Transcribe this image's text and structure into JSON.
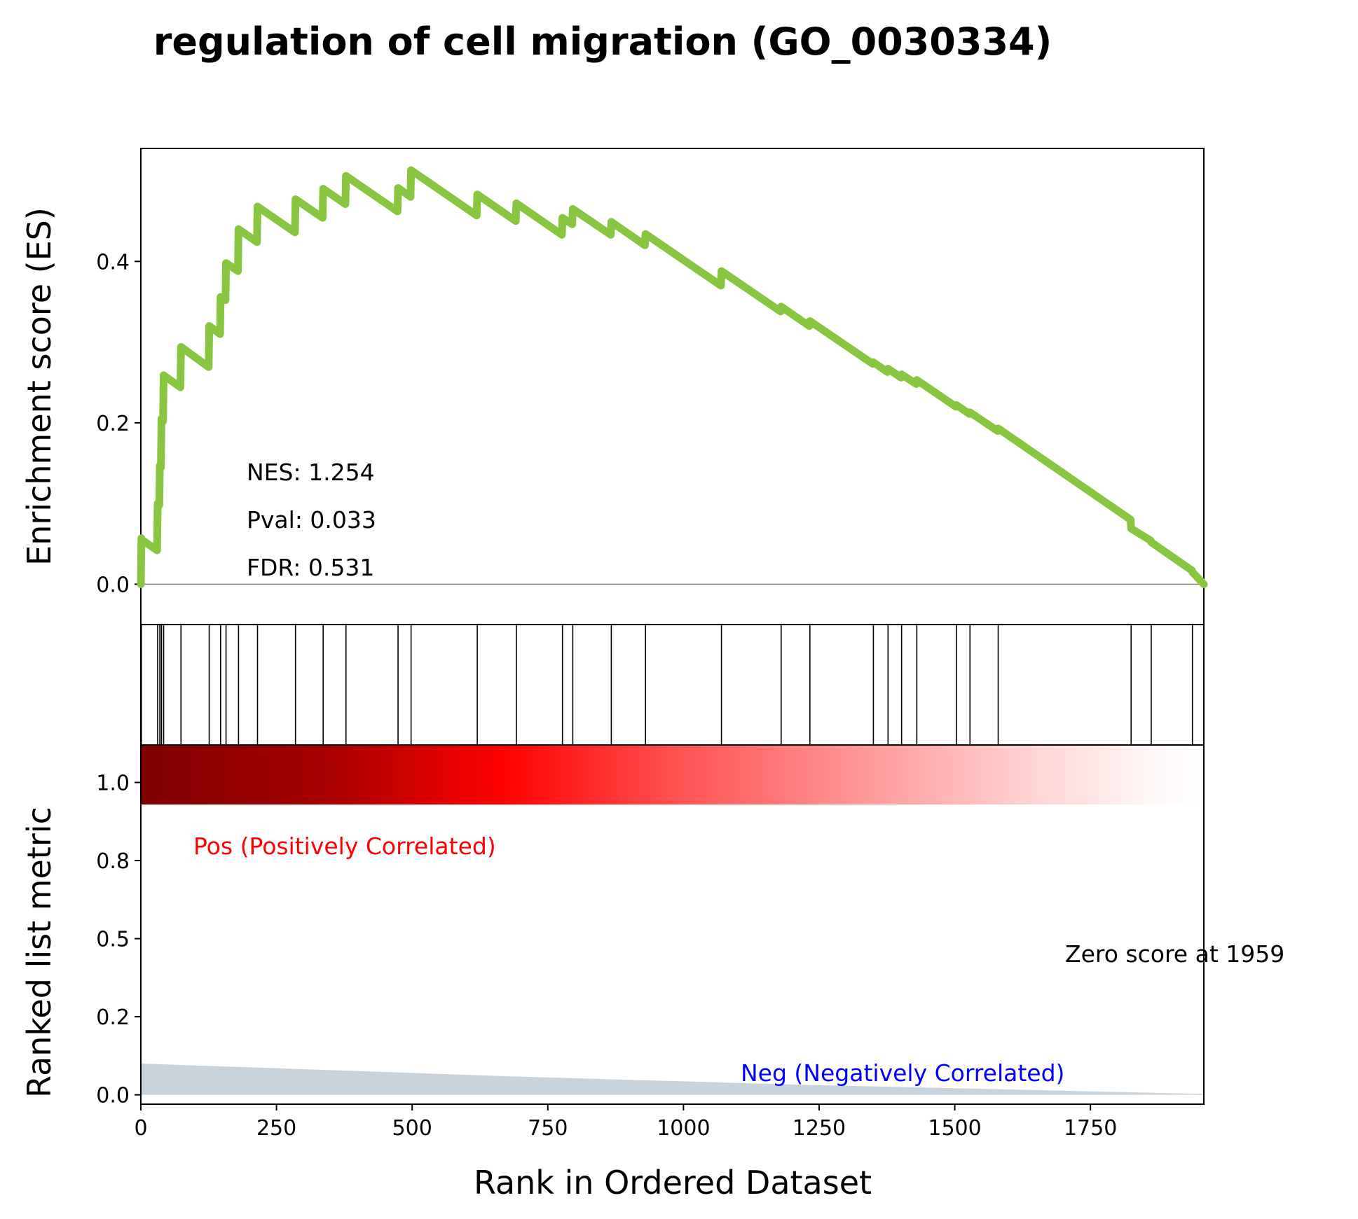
{
  "chart_data": {
    "type": "line",
    "title": "regulation of cell migration (GO_0030334)",
    "xlabel": "Rank in Ordered Dataset",
    "ylabel_es": "Enrichment score (ES)",
    "ylabel_rank": "Ranked list metric",
    "xlim": [
      0,
      1959
    ],
    "es_ylim": [
      -0.05,
      0.54
    ],
    "rank_ylim": [
      -0.03,
      1.12
    ],
    "x_ticks": [
      "0",
      "250",
      "500",
      "750",
      "1000",
      "1250",
      "1500",
      "1750"
    ],
    "x_tick_values": [
      0,
      250,
      500,
      750,
      1000,
      1250,
      1500,
      1750
    ],
    "es_ticks": [
      "0.0",
      "0.2",
      "0.4"
    ],
    "es_tick_values": [
      0.0,
      0.2,
      0.4
    ],
    "rank_ticks": [
      "0.0",
      "0.2",
      "0.5",
      "0.8",
      "1.0"
    ],
    "rank_tick_values": [
      0.0,
      0.25,
      0.5,
      0.75,
      1.0
    ],
    "stats": {
      "nes": "NES: 1.254",
      "pval": "Pval: 0.033",
      "fdr": "FDR: 0.531"
    },
    "labels": {
      "pos": "Pos (Positively Correlated)",
      "neg": "Neg (Negatively Correlated)",
      "zero": "Zero score at 1959"
    },
    "hits": [
      1,
      31,
      35,
      38,
      42,
      74,
      126,
      147,
      157,
      180,
      215,
      285,
      336,
      378,
      474,
      498,
      620,
      692,
      777,
      796,
      867,
      930,
      1070,
      1180,
      1233,
      1350,
      1377,
      1402,
      1430,
      1503,
      1528,
      1580,
      1825,
      1862,
      1938
    ],
    "es_curve": {
      "x": [
        0,
        1,
        2,
        30,
        31,
        34,
        35,
        37,
        38,
        41,
        42,
        73,
        74,
        125,
        126,
        146,
        147,
        156,
        157,
        179,
        180,
        214,
        215,
        284,
        285,
        335,
        336,
        377,
        378,
        473,
        474,
        497,
        498,
        619,
        620,
        691,
        692,
        776,
        777,
        795,
        796,
        866,
        867,
        929,
        930,
        1069,
        1070,
        1179,
        1180,
        1232,
        1233,
        1349,
        1350,
        1376,
        1377,
        1401,
        1402,
        1429,
        1430,
        1502,
        1503,
        1527,
        1528,
        1579,
        1580,
        1824,
        1825,
        1861,
        1862,
        1937,
        1938,
        1959
      ],
      "y": [
        0.0,
        0.057,
        0.055,
        0.042,
        0.1,
        0.098,
        0.147,
        0.145,
        0.205,
        0.202,
        0.259,
        0.244,
        0.294,
        0.269,
        0.32,
        0.31,
        0.356,
        0.352,
        0.398,
        0.388,
        0.44,
        0.424,
        0.468,
        0.436,
        0.477,
        0.454,
        0.49,
        0.471,
        0.506,
        0.462,
        0.491,
        0.48,
        0.513,
        0.457,
        0.483,
        0.45,
        0.472,
        0.433,
        0.454,
        0.446,
        0.465,
        0.433,
        0.449,
        0.42,
        0.434,
        0.37,
        0.388,
        0.338,
        0.344,
        0.32,
        0.326,
        0.273,
        0.275,
        0.263,
        0.267,
        0.256,
        0.26,
        0.248,
        0.253,
        0.22,
        0.222,
        0.211,
        0.213,
        0.19,
        0.193,
        0.08,
        0.069,
        0.054,
        0.052,
        0.017,
        0.015,
        0.0
      ]
    },
    "ranked_metric": {
      "x": [
        0,
        100,
        200,
        300,
        400,
        500,
        600,
        700,
        800,
        900,
        1000,
        1100,
        1200,
        1300,
        1400,
        1500,
        1600,
        1700,
        1800,
        1900,
        1959
      ],
      "y": [
        0.1,
        0.094,
        0.088,
        0.082,
        0.076,
        0.07,
        0.064,
        0.058,
        0.053,
        0.048,
        0.043,
        0.038,
        0.033,
        0.029,
        0.025,
        0.021,
        0.017,
        0.013,
        0.009,
        0.005,
        0.003
      ]
    },
    "colors": {
      "es_line": "#88c540",
      "fill": "#c9d3dc",
      "pos": "#ff0000",
      "neg": "#0000ff",
      "heat_start": "#800000",
      "heat_mid": "#ff0000"
    }
  }
}
